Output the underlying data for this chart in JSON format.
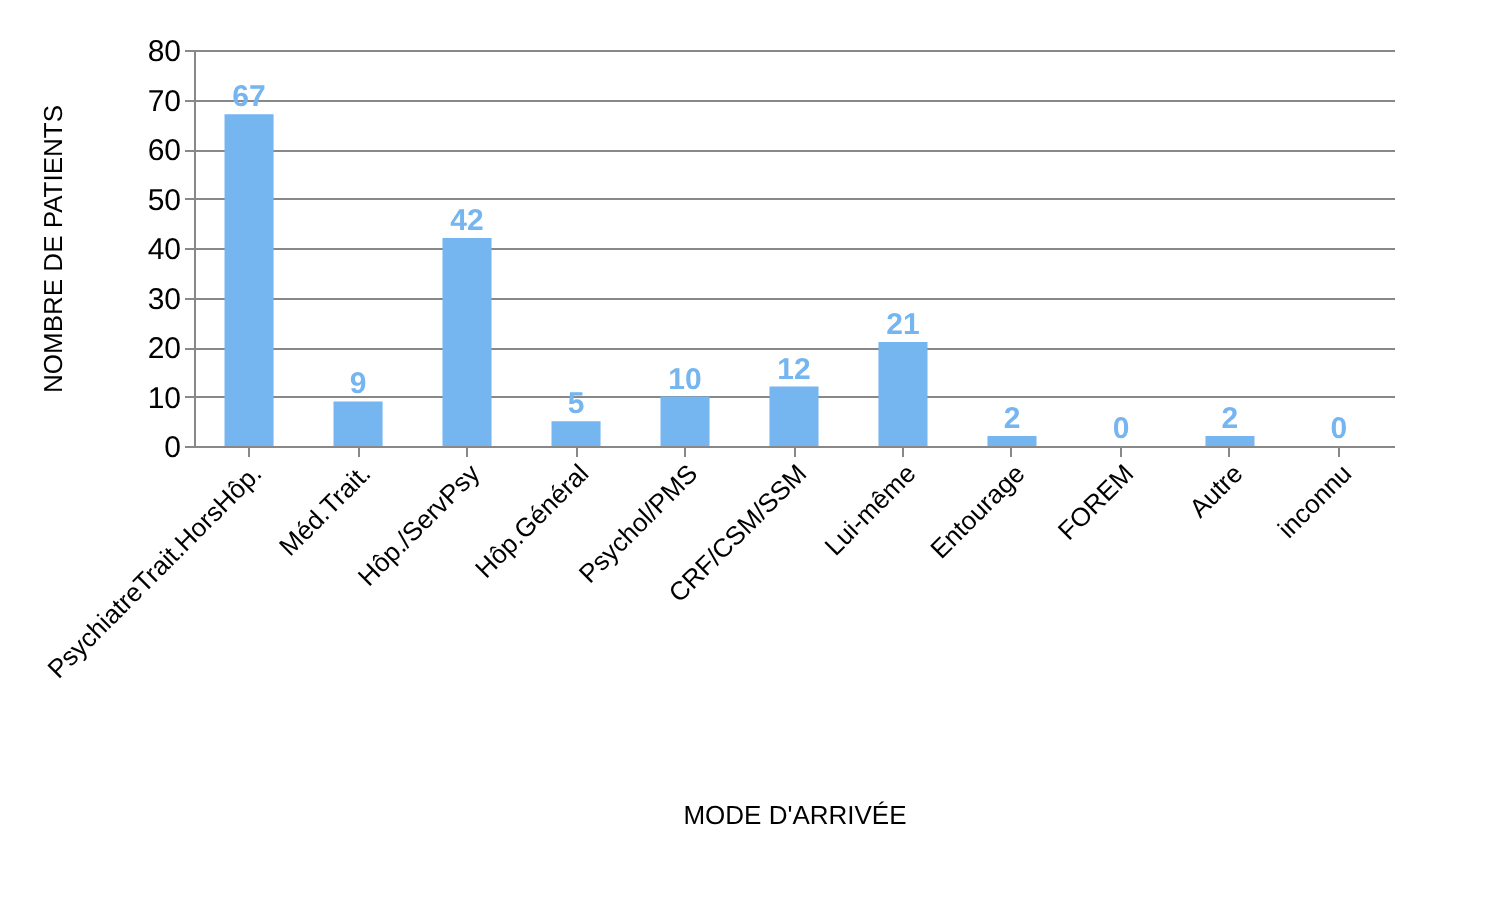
{
  "chart_data": {
    "type": "bar",
    "xlabel": "MODE D'ARRIVÉE",
    "ylabel": "NOMBRE DE PATIENTS",
    "categories": [
      "PsychiatreTrait.HorsHôp.",
      "Méd.Trait.",
      "Hôp./ServPsy",
      "Hôp.Général",
      "Psychol/PMS",
      "CRF/CSM/SSM",
      "Lui-même",
      "Entourage",
      "FOREM",
      "Autre",
      "inconnu"
    ],
    "values": [
      67,
      9,
      42,
      5,
      10,
      12,
      21,
      2,
      0,
      2,
      0
    ],
    "color": "#75b5f0",
    "ylim": [
      0,
      80
    ],
    "yticks": [
      0,
      10,
      20,
      30,
      40,
      50,
      60,
      70,
      80
    ],
    "grid": "y",
    "data_labels": true
  }
}
